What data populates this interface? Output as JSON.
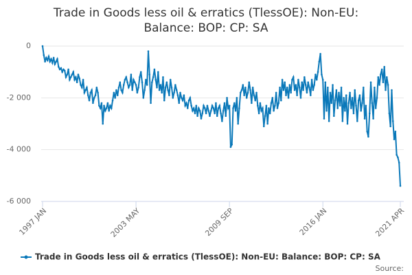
{
  "chart_data": {
    "type": "line",
    "title": "Trade in Goods less oil & erratics (TlessOE): Non-EU: Balance: BOP: CP: SA",
    "source": "Source:",
    "categories": [
      "1997 JAN",
      null,
      null,
      null,
      null,
      null,
      null,
      null,
      null,
      null,
      null,
      null,
      null,
      null,
      null,
      null,
      null,
      null,
      null,
      null,
      null,
      null,
      null,
      null,
      null,
      null,
      null,
      null,
      null,
      null,
      null,
      null,
      null,
      null,
      null,
      null,
      null,
      null,
      null,
      null,
      null,
      null,
      null,
      null,
      null,
      null,
      null,
      null,
      null,
      null,
      null,
      null,
      null,
      null,
      null,
      null,
      null,
      null,
      null,
      null,
      null,
      null,
      null,
      null,
      null,
      null,
      null,
      null,
      null,
      null,
      null,
      null,
      null,
      null,
      null,
      null,
      "2003 MAY",
      null,
      null,
      null,
      null,
      null,
      null,
      null,
      null,
      null,
      null,
      null,
      null,
      null,
      null,
      null,
      null,
      null,
      null,
      null,
      null,
      null,
      null,
      null,
      null,
      null,
      null,
      null,
      null,
      null,
      null,
      null,
      null,
      null,
      null,
      null,
      null,
      null,
      null,
      null,
      null,
      null,
      null,
      null,
      null,
      null,
      null,
      null,
      null,
      null,
      null,
      null,
      null,
      null,
      null,
      null,
      null,
      null,
      null,
      null,
      null,
      null,
      null,
      null,
      null,
      null,
      null,
      null,
      null,
      null,
      null,
      null,
      null,
      null,
      null,
      null,
      "2009 SEP",
      null,
      null,
      null,
      null,
      null,
      null,
      null,
      null,
      null,
      null,
      null,
      null,
      null,
      null,
      null,
      null,
      null,
      null,
      null,
      null,
      null,
      null,
      null,
      null,
      null,
      null,
      null,
      null,
      null,
      null,
      null,
      null,
      null,
      null,
      null,
      null,
      null,
      null,
      null,
      null,
      null,
      null,
      null,
      null,
      null,
      null,
      null,
      null,
      null,
      null,
      null,
      null,
      null,
      null,
      null,
      null,
      null,
      null,
      null,
      null,
      null,
      null,
      null,
      null,
      null,
      null,
      null,
      null,
      null,
      null,
      null,
      null,
      null,
      null,
      null,
      "2016 JAN",
      null,
      null,
      null,
      null,
      null,
      null,
      null,
      null,
      null,
      null,
      null,
      null,
      null,
      null,
      null,
      null,
      null,
      null,
      null,
      null,
      null,
      null,
      null,
      null,
      null,
      null,
      null,
      null,
      null,
      null,
      null,
      null,
      null,
      null,
      null,
      null,
      null,
      null,
      null,
      null,
      null,
      null,
      null,
      null,
      null,
      null,
      null,
      null,
      null,
      null,
      null,
      null,
      null,
      null,
      null,
      null,
      null,
      null,
      null,
      null,
      null,
      null,
      "2021 APR"
    ],
    "series": [
      {
        "name": "Trade in Goods less oil & erratics (TlessOE): Non-EU: Balance: BOP: CP: SA",
        "color": "#0a78b9",
        "values": [
          0,
          -350,
          -600,
          -450,
          -550,
          -400,
          -600,
          -500,
          -650,
          -450,
          -700,
          -600,
          -500,
          -800,
          -900,
          -850,
          -1000,
          -900,
          -950,
          -1200,
          -1100,
          -900,
          -1300,
          -1200,
          -1100,
          -1000,
          -1300,
          -1200,
          -1400,
          -1100,
          -1250,
          -1500,
          -1600,
          -1300,
          -1800,
          -1700,
          -1600,
          -1900,
          -2100,
          -1800,
          -1700,
          -2200,
          -2000,
          -1900,
          -1600,
          -1800,
          -2300,
          -2400,
          -2200,
          -3000,
          -2300,
          -2500,
          -2400,
          -2200,
          -2500,
          -2300,
          -2400,
          -2100,
          -1800,
          -2000,
          -1700,
          -1900,
          -1600,
          -1400,
          -1700,
          -1800,
          -1500,
          -1300,
          -1200,
          -1400,
          -1600,
          -1500,
          -1100,
          -1700,
          -1300,
          -1400,
          -1500,
          -1800,
          -1600,
          -1200,
          -1000,
          -1400,
          -2000,
          -1700,
          -1300,
          -1500,
          -200,
          -1100,
          -2200,
          -1400,
          -1200,
          -900,
          -1300,
          -1600,
          -1000,
          -1700,
          -1500,
          -1800,
          -1200,
          -2100,
          -1600,
          -1400,
          -1700,
          -1900,
          -1300,
          -1600,
          -2000,
          -1800,
          -1500,
          -1700,
          -1900,
          -2200,
          -1800,
          -2000,
          -2100,
          -1900,
          -2300,
          -2200,
          -2400,
          -2100,
          -2000,
          -2300,
          -2500,
          -2400,
          -2600,
          -2300,
          -2700,
          -2400,
          -2500,
          -2800,
          -2600,
          -2300,
          -2400,
          -2600,
          -2300,
          -2500,
          -2700,
          -2500,
          -2300,
          -2400,
          -2600,
          -2200,
          -2700,
          -2400,
          -2300,
          -2600,
          -2900,
          -2500,
          -2200,
          -2700,
          -2000,
          -2400,
          -2300,
          -3900,
          -3800,
          -2400,
          -2200,
          -2500,
          -2000,
          -3000,
          -2400,
          -1800,
          -1700,
          -1500,
          -1900,
          -1600,
          -2000,
          -1800,
          -1400,
          -1700,
          -2200,
          -1600,
          -1900,
          -2100,
          -1800,
          -2300,
          -2600,
          -2200,
          -2500,
          -2400,
          -3100,
          -2700,
          -2300,
          -3000,
          -2400,
          -2600,
          -2200,
          -2000,
          -2500,
          -2300,
          -1800,
          -2400,
          -2200,
          -1600,
          -2100,
          -1300,
          -1700,
          -1400,
          -1900,
          -1600,
          -2000,
          -1500,
          -1800,
          -1300,
          -1200,
          -1700,
          -1500,
          -1900,
          -1300,
          -1600,
          -2000,
          -1400,
          -1700,
          -1200,
          -1500,
          -1800,
          -1400,
          -1600,
          -1900,
          -1300,
          -1700,
          -1500,
          -1100,
          -1300,
          -1000,
          -600,
          -300,
          -1100,
          -1300,
          -2800,
          -1400,
          -2500,
          -1600,
          -2900,
          -1800,
          -2200,
          -1500,
          -2700,
          -2100,
          -1700,
          -2400,
          -1800,
          -2300,
          -1600,
          -2900,
          -2000,
          -2500,
          -1900,
          -3000,
          -2200,
          -1800,
          -2400,
          -2000,
          -2600,
          -1700,
          -2300,
          -2900,
          -2100,
          -1900,
          -2500,
          -2200,
          -1600,
          -2800,
          -2300,
          -3300,
          -3500,
          -2600,
          -1400,
          -2200,
          -2800,
          -1600,
          -2400,
          -2000,
          -1200,
          -1500,
          -1100,
          -900,
          -1400,
          -800,
          -1700,
          -1200,
          -1500,
          -2600,
          -3100,
          -1700,
          -2900,
          -3600,
          -3300,
          -4200,
          -4300,
          -4500,
          -5400
        ]
      }
    ],
    "ylim": [
      -6000,
      0
    ],
    "yticks": [
      {
        "value": -6000,
        "label": "-6 000"
      },
      {
        "value": -4000,
        "label": "-4 000"
      },
      {
        "value": -2000,
        "label": "-2 000"
      },
      0
    ],
    "grid": true
  }
}
